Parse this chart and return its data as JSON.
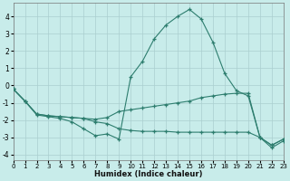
{
  "xlabel": "Humidex (Indice chaleur)",
  "background_color": "#c8ecea",
  "grid_color": "#aacfcf",
  "line_color": "#2d7d6e",
  "xlim": [
    0,
    23
  ],
  "ylim": [
    -4.3,
    4.8
  ],
  "yticks": [
    -4,
    -3,
    -2,
    -1,
    0,
    1,
    2,
    3,
    4
  ],
  "xticks": [
    0,
    1,
    2,
    3,
    4,
    5,
    6,
    7,
    8,
    9,
    10,
    11,
    12,
    13,
    14,
    15,
    16,
    17,
    18,
    19,
    20,
    21,
    22,
    23
  ],
  "curve1_x": [
    0,
    1,
    2,
    3,
    4,
    5,
    6,
    7,
    8,
    9,
    10,
    11,
    12,
    13,
    14,
    15,
    16,
    17,
    18,
    19,
    20,
    21,
    22,
    23
  ],
  "curve1_y": [
    -0.2,
    -0.9,
    -1.7,
    -1.8,
    -1.9,
    -2.1,
    -2.5,
    -2.9,
    -2.8,
    -3.1,
    0.5,
    1.4,
    2.7,
    3.5,
    4.0,
    4.4,
    3.85,
    2.5,
    0.7,
    -0.3,
    -0.6,
    -3.0,
    -3.6,
    -3.2
  ],
  "curve2_x": [
    0,
    1,
    2,
    3,
    4,
    5,
    6,
    7,
    8,
    9,
    10,
    11,
    12,
    13,
    14,
    15,
    16,
    17,
    18,
    19,
    20,
    21,
    22,
    23
  ],
  "curve2_y": [
    -0.2,
    -0.9,
    -1.65,
    -1.75,
    -1.8,
    -1.85,
    -1.9,
    -1.95,
    -1.85,
    -1.5,
    -1.4,
    -1.3,
    -1.2,
    -1.1,
    -1.0,
    -0.9,
    -0.7,
    -0.6,
    -0.5,
    -0.45,
    -0.45,
    -3.0,
    -3.45,
    -3.1
  ],
  "curve3_x": [
    0,
    1,
    2,
    3,
    4,
    5,
    6,
    7,
    8,
    9,
    10,
    11,
    12,
    13,
    14,
    15,
    16,
    17,
    18,
    19,
    20,
    21,
    22,
    23
  ],
  "curve3_y": [
    -0.2,
    -0.9,
    -1.65,
    -1.75,
    -1.8,
    -1.85,
    -1.9,
    -2.1,
    -2.2,
    -2.5,
    -2.6,
    -2.65,
    -2.65,
    -2.65,
    -2.7,
    -2.7,
    -2.7,
    -2.7,
    -2.7,
    -2.7,
    -2.7,
    -3.0,
    -3.45,
    -3.1
  ]
}
